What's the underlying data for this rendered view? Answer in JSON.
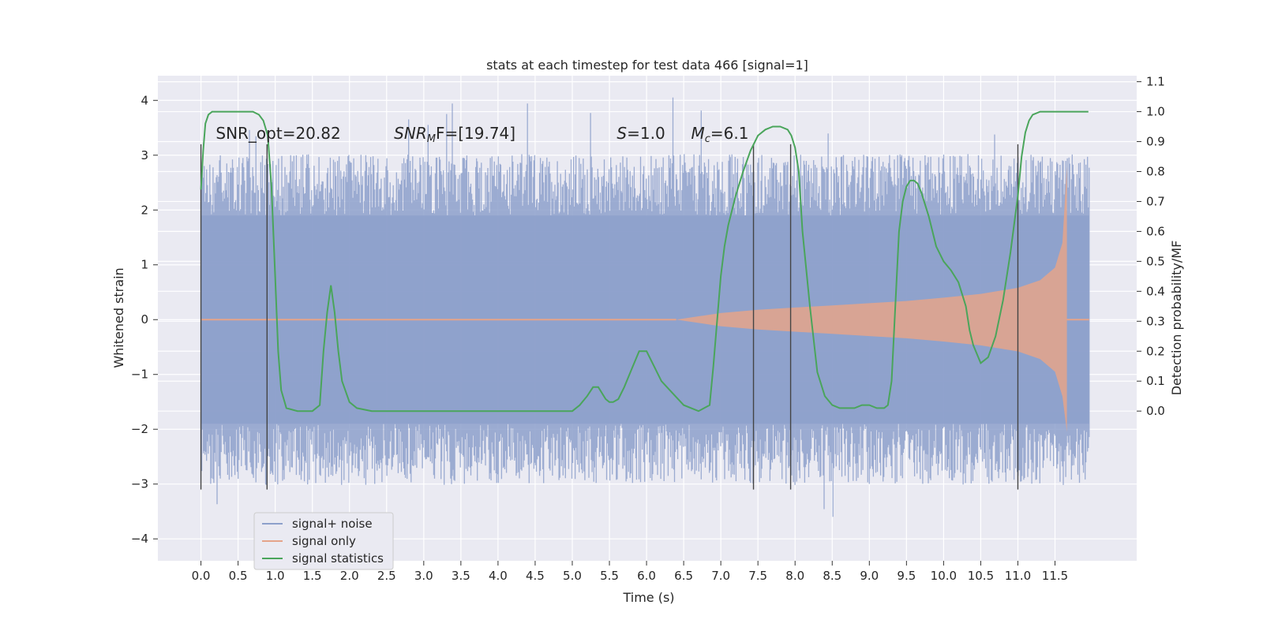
{
  "chart_data": {
    "type": "line",
    "title": "stats at each timestep for test data 466 [signal=1]",
    "xlabel": "Time (s)",
    "ylabel": "Whitened strain",
    "ylabel_right": "Detection probability/MF",
    "xlim": [
      -0.58,
      12.6
    ],
    "ylim": [
      -4.4,
      4.45
    ],
    "ylim_right": [
      -0.5,
      1.12
    ],
    "x_ticks": [
      0.0,
      0.5,
      1.0,
      1.5,
      2.0,
      2.5,
      3.0,
      3.5,
      4.0,
      4.5,
      5.0,
      5.5,
      6.0,
      6.5,
      7.0,
      7.5,
      8.0,
      8.5,
      9.0,
      9.5,
      10.0,
      10.5,
      11.0,
      11.5
    ],
    "x_tick_labels": [
      "0.0",
      "0.5",
      "1.0",
      "1.5",
      "2.0",
      "2.5",
      "3.0",
      "3.5",
      "4.0",
      "4.5",
      "5.0",
      "5.5",
      "6.0",
      "6.5",
      "7.0",
      "7.5",
      "8.0",
      "8.5",
      "9.0",
      "9.5",
      "10.0",
      "10.5",
      "11.0",
      "11.5"
    ],
    "y_ticks": [
      -4,
      -3,
      -2,
      -1,
      0,
      1,
      2,
      3,
      4
    ],
    "y_tick_labels": [
      "−4",
      "−3",
      "−2",
      "−1",
      "0",
      "1",
      "2",
      "3",
      "4"
    ],
    "y_right_ticks": [
      0.0,
      0.1,
      0.2,
      0.3,
      0.4,
      0.5,
      0.6,
      0.7,
      0.8,
      0.9,
      1.0,
      1.1
    ],
    "y_right_tick_labels": [
      "0.0",
      "0.1",
      "0.2",
      "0.3",
      "0.4",
      "0.5",
      "0.6",
      "0.7",
      "0.8",
      "0.9",
      "1.0",
      "1.1"
    ],
    "grid": true,
    "legend_position": "lower-left",
    "legend": [
      {
        "label": "signal+ noise",
        "color": "#8da0cb"
      },
      {
        "label": "signal only",
        "color": "#e5a48a"
      },
      {
        "label": "signal statistics",
        "color": "#4aa55b"
      }
    ],
    "colors": {
      "background": "#eaeaf2",
      "grid": "#ffffff",
      "noise": "#8da0cb",
      "signal": "#e5a48a",
      "statistic": "#4aa55b",
      "marker_line": "#444444"
    },
    "annotations": {
      "snr_opt": "SNR_opt=20.82",
      "snr_mf_name": "SNR",
      "snr_mf_sub": "M",
      "snr_mf_rest": "F=[19.74]",
      "s_name": "S",
      "s_rest": "=1.0",
      "mc_name": "M",
      "mc_sub": "c",
      "mc_rest": "=6.1"
    },
    "annotation_anchor_y": 3.3,
    "annotation_x": [
      0.2,
      2.6,
      5.6,
      6.6
    ],
    "series": [
      {
        "name": "signal+ noise",
        "style": "noise-band",
        "x_range": [
          0.0,
          11.96
        ],
        "core_amplitude": 1.9,
        "typical_peak": 2.6,
        "max_peak": 4.1,
        "min_trough": -3.95
      },
      {
        "name": "signal only",
        "style": "chirp-envelope",
        "x_range": [
          6.4,
          11.66
        ],
        "envelope_x": [
          6.4,
          7.0,
          7.5,
          8.0,
          8.5,
          9.0,
          9.5,
          10.0,
          10.5,
          11.0,
          11.3,
          11.5,
          11.6,
          11.66
        ],
        "envelope_upper": [
          0.0,
          0.12,
          0.18,
          0.22,
          0.26,
          0.3,
          0.34,
          0.4,
          0.47,
          0.58,
          0.72,
          0.95,
          1.4,
          2.8
        ],
        "envelope_lower": [
          0.0,
          -0.12,
          -0.18,
          -0.22,
          -0.26,
          -0.3,
          -0.34,
          -0.4,
          -0.47,
          -0.58,
          -0.72,
          -0.95,
          -1.4,
          -2.05
        ]
      },
      {
        "name": "signal statistics",
        "axis": "right",
        "x": [
          0.0,
          0.03,
          0.06,
          0.1,
          0.15,
          0.25,
          0.35,
          0.5,
          0.7,
          0.78,
          0.84,
          0.9,
          0.95,
          1.0,
          1.04,
          1.08,
          1.15,
          1.3,
          1.5,
          1.6,
          1.65,
          1.7,
          1.75,
          1.8,
          1.85,
          1.9,
          2.0,
          2.1,
          2.3,
          2.5,
          3.0,
          3.5,
          4.0,
          4.5,
          5.0,
          5.1,
          5.2,
          5.28,
          5.35,
          5.4,
          5.45,
          5.5,
          5.55,
          5.62,
          5.7,
          5.8,
          5.9,
          6.0,
          6.1,
          6.2,
          6.35,
          6.5,
          6.7,
          6.85,
          6.9,
          6.95,
          7.0,
          7.05,
          7.1,
          7.2,
          7.3,
          7.4,
          7.5,
          7.6,
          7.7,
          7.8,
          7.9,
          7.95,
          8.0,
          8.05,
          8.1,
          8.2,
          8.3,
          8.4,
          8.5,
          8.6,
          8.8,
          8.9,
          9.0,
          9.1,
          9.2,
          9.25,
          9.3,
          9.35,
          9.4,
          9.45,
          9.5,
          9.55,
          9.6,
          9.65,
          9.7,
          9.8,
          9.9,
          10.0,
          10.1,
          10.2,
          10.3,
          10.35,
          10.4,
          10.5,
          10.6,
          10.7,
          10.8,
          10.9,
          11.0,
          11.05,
          11.1,
          11.15,
          11.2,
          11.3,
          11.5,
          11.7,
          11.95
        ],
        "y": [
          0.74,
          0.87,
          0.96,
          0.99,
          1.0,
          1.0,
          1.0,
          1.0,
          1.0,
          0.99,
          0.97,
          0.92,
          0.75,
          0.45,
          0.2,
          0.07,
          0.01,
          0.0,
          0.0,
          0.02,
          0.2,
          0.33,
          0.42,
          0.33,
          0.2,
          0.1,
          0.03,
          0.01,
          0.0,
          0.0,
          0.0,
          0.0,
          0.0,
          0.0,
          0.0,
          0.02,
          0.05,
          0.08,
          0.08,
          0.06,
          0.04,
          0.03,
          0.03,
          0.04,
          0.08,
          0.14,
          0.2,
          0.2,
          0.15,
          0.1,
          0.06,
          0.02,
          0.0,
          0.02,
          0.15,
          0.3,
          0.45,
          0.55,
          0.62,
          0.72,
          0.8,
          0.87,
          0.92,
          0.94,
          0.95,
          0.95,
          0.94,
          0.92,
          0.88,
          0.8,
          0.6,
          0.35,
          0.13,
          0.05,
          0.02,
          0.01,
          0.01,
          0.02,
          0.02,
          0.01,
          0.01,
          0.02,
          0.1,
          0.35,
          0.6,
          0.7,
          0.75,
          0.77,
          0.77,
          0.76,
          0.73,
          0.65,
          0.55,
          0.5,
          0.47,
          0.43,
          0.35,
          0.27,
          0.22,
          0.16,
          0.18,
          0.25,
          0.37,
          0.53,
          0.72,
          0.85,
          0.93,
          0.97,
          0.99,
          1.0,
          1.0,
          1.0,
          1.0
        ]
      }
    ],
    "vertical_markers": [
      0.0,
      0.89,
      7.44,
      7.94,
      11.0
    ],
    "vertical_marker_range": [
      -3.1,
      3.2
    ]
  }
}
